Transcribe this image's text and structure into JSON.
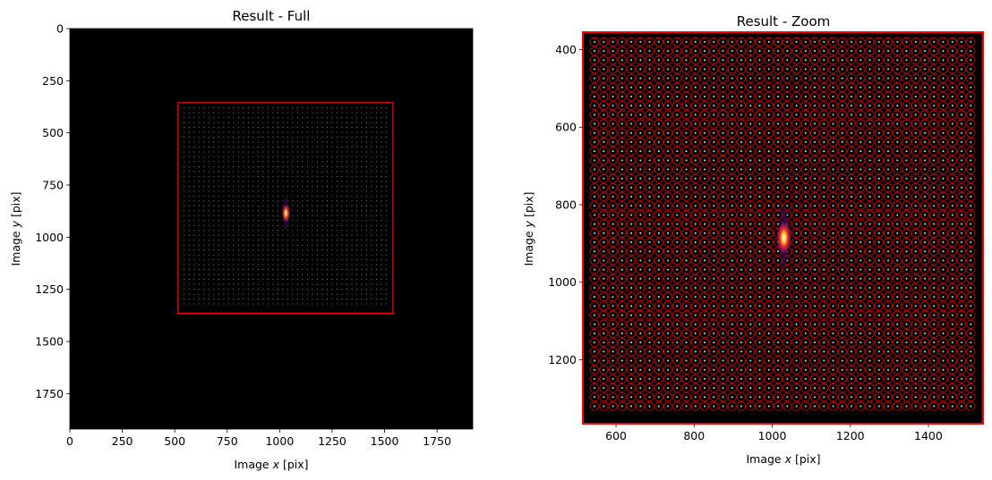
{
  "chart_data": [
    {
      "type": "image",
      "title": "Result - Full",
      "xlabel_prefix": "Image ",
      "xlabel_var": "x",
      "xlabel_suffix": " [pix]",
      "ylabel_prefix": "Image ",
      "ylabel_var": "y",
      "ylabel_suffix": " [pix]",
      "xlim": [
        0,
        1920
      ],
      "ylim": [
        1920,
        0
      ],
      "xticks": [
        0,
        250,
        500,
        750,
        1000,
        1250,
        1500,
        1750
      ],
      "yticks": [
        0,
        250,
        500,
        750,
        1000,
        1250,
        1500,
        1750
      ],
      "roi_rect": {
        "x0": 515,
        "x1": 1540,
        "y0": 355,
        "y1": 1365
      },
      "grid_points": {
        "x_start": 545,
        "x_end": 1525,
        "x_step": 23.5,
        "y_start": 380,
        "y_end": 1340,
        "y_step": 23.5
      },
      "hotspot": {
        "x": 1030,
        "y": 885
      },
      "background_color": "#000000",
      "roi_color": "#ff0000"
    },
    {
      "type": "image",
      "title": "Result - Zoom",
      "xlabel_prefix": "Image ",
      "xlabel_var": "x",
      "xlabel_suffix": " [pix]",
      "ylabel_prefix": "Image ",
      "ylabel_var": "y",
      "ylabel_suffix": " [pix]",
      "xlim": [
        515,
        1540
      ],
      "ylim": [
        1365,
        355
      ],
      "xticks": [
        600,
        800,
        1000,
        1200,
        1400
      ],
      "yticks": [
        400,
        600,
        800,
        1000,
        1200
      ],
      "grid_points": {
        "x_start": 545,
        "x_end": 1525,
        "x_step": 23.5,
        "y_start": 380,
        "y_end": 1340,
        "y_step": 23.5
      },
      "hotspot": {
        "x": 1030,
        "y": 885
      },
      "background_color": "#000000",
      "circle_color": "#ff0000"
    }
  ]
}
